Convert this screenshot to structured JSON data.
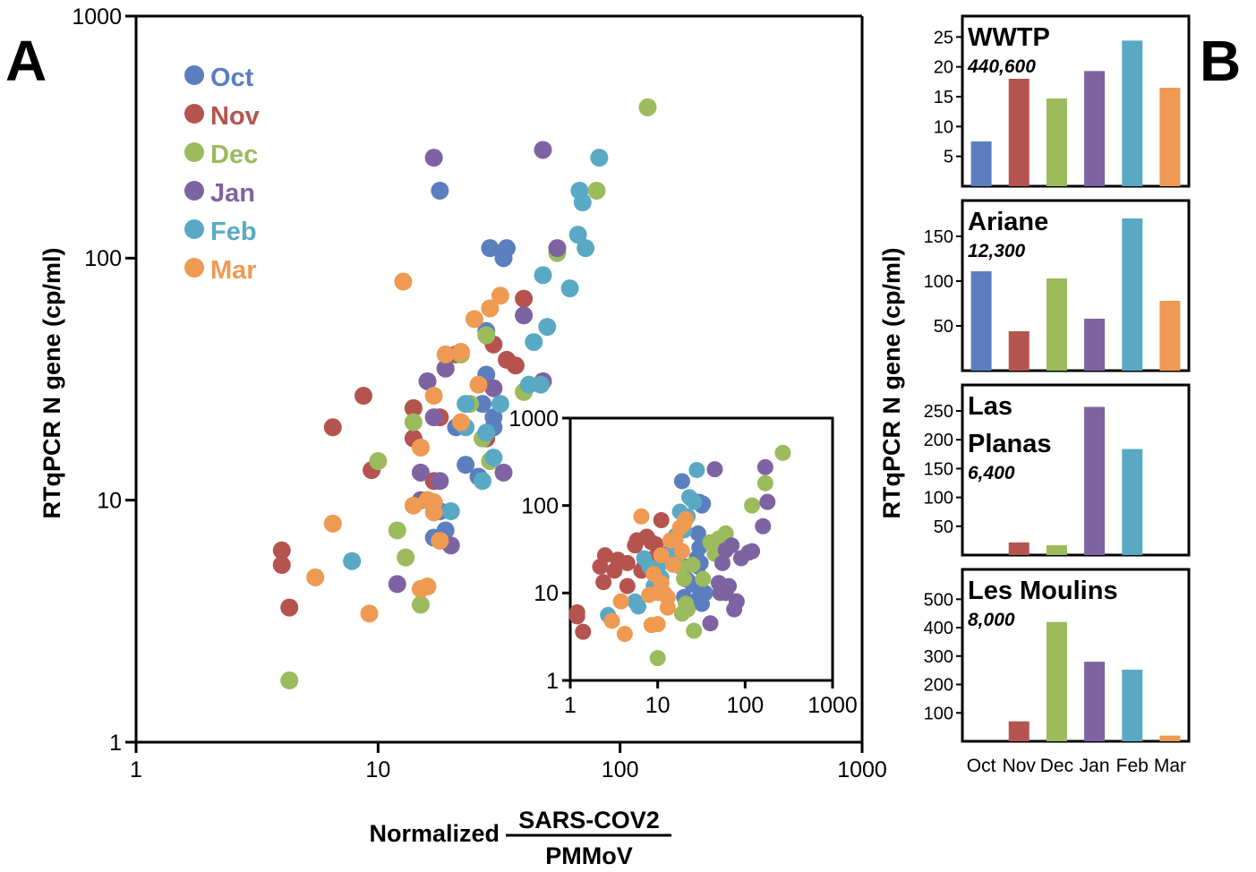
{
  "colors": {
    "Oct": "#5b7fbe",
    "Nov": "#b5544f",
    "Dec": "#9bbb5c",
    "Jan": "#7e63a2",
    "Feb": "#5aa9c4",
    "Mar": "#ef9a52"
  },
  "panels": {
    "a": "A",
    "b": "B"
  },
  "chart_data": [
    {
      "type": "scatter",
      "panel": "A",
      "title": "",
      "xlabel_prefix": "Normalized",
      "xlabel_numerator": "SARS-COV2",
      "xlabel_denominator": "PMMoV",
      "ylabel": "RTqPCR N gene (cp/ml)",
      "xscale": "log",
      "yscale": "log",
      "xlim": [
        1,
        1000
      ],
      "ylim": [
        1,
        1000
      ],
      "xticks": [
        "1",
        "10",
        "100",
        "1000"
      ],
      "yticks": [
        "1",
        "10",
        "100",
        "1000"
      ],
      "grid": false,
      "legend_position": "top-left",
      "series": [
        {
          "name": "Oct",
          "points": [
            [
              18,
              190
            ],
            [
              29,
              110
            ],
            [
              33,
              100
            ],
            [
              34,
              110
            ],
            [
              28,
              50
            ],
            [
              28,
              33
            ],
            [
              27,
              25
            ],
            [
              30,
              22
            ],
            [
              30,
              20
            ],
            [
              26,
              12.5
            ],
            [
              23,
              14
            ],
            [
              21,
              20
            ],
            [
              18,
              9
            ],
            [
              19,
              7.5
            ],
            [
              17,
              7
            ],
            [
              16,
              10
            ]
          ]
        },
        {
          "name": "Nov",
          "points": [
            [
              4,
              6.2
            ],
            [
              4,
              5.4
            ],
            [
              4.3,
              3.6
            ],
            [
              6.5,
              20
            ],
            [
              8.7,
              27
            ],
            [
              9.4,
              13.3
            ],
            [
              14,
              24
            ],
            [
              14,
              18
            ],
            [
              17,
              12
            ],
            [
              18,
              22
            ],
            [
              19,
              35
            ],
            [
              21,
              40
            ],
            [
              28,
              18
            ],
            [
              30,
              44
            ],
            [
              34,
              38
            ],
            [
              37,
              36
            ],
            [
              40,
              68
            ]
          ]
        },
        {
          "name": "Dec",
          "points": [
            [
              4.3,
              1.8
            ],
            [
              10,
              14.5
            ],
            [
              12,
              7.5
            ],
            [
              13,
              5.8
            ],
            [
              14,
              21
            ],
            [
              15,
              3.7
            ],
            [
              22,
              40
            ],
            [
              24,
              25
            ],
            [
              27,
              18
            ],
            [
              28,
              48
            ],
            [
              29,
              14.5
            ],
            [
              40,
              28
            ],
            [
              55,
              105
            ],
            [
              80,
              190
            ],
            [
              130,
              420
            ]
          ]
        },
        {
          "name": "Jan",
          "points": [
            [
              12,
              4.5
            ],
            [
              15,
              13
            ],
            [
              15,
              10
            ],
            [
              16,
              31
            ],
            [
              17,
              22
            ],
            [
              18,
              12
            ],
            [
              19,
              35
            ],
            [
              20,
              6.5
            ],
            [
              30,
              29
            ],
            [
              33,
              13
            ],
            [
              40,
              58
            ],
            [
              48,
              31
            ],
            [
              48,
              280
            ],
            [
              55,
              110
            ],
            [
              17,
              260
            ]
          ]
        },
        {
          "name": "Feb",
          "points": [
            [
              7.8,
              5.6
            ],
            [
              20,
              9
            ],
            [
              23,
              25
            ],
            [
              23,
              20
            ],
            [
              27,
              12
            ],
            [
              28,
              19
            ],
            [
              30,
              15
            ],
            [
              32,
              25
            ],
            [
              42,
              30
            ],
            [
              44,
              45
            ],
            [
              47,
              30
            ],
            [
              48,
              85
            ],
            [
              50,
              52
            ],
            [
              62,
              75
            ],
            [
              67,
              125
            ],
            [
              68,
              190
            ],
            [
              70,
              170
            ],
            [
              72,
              110
            ],
            [
              82,
              260
            ]
          ]
        },
        {
          "name": "Mar",
          "points": [
            [
              5.5,
              4.8
            ],
            [
              6.5,
              8
            ],
            [
              9.2,
              3.4
            ],
            [
              12.7,
              80
            ],
            [
              14,
              9.5
            ],
            [
              15,
              4.3
            ],
            [
              15,
              16.5
            ],
            [
              16,
              4.4
            ],
            [
              16,
              10
            ],
            [
              17,
              27
            ],
            [
              17,
              9.8
            ],
            [
              17,
              8.9
            ],
            [
              18,
              6.8
            ],
            [
              19,
              40
            ],
            [
              22,
              21
            ],
            [
              22,
              41
            ],
            [
              25,
              56
            ],
            [
              26,
              30
            ],
            [
              29,
              62
            ],
            [
              32,
              70
            ]
          ]
        }
      ]
    },
    {
      "type": "scatter",
      "panel": "A-inset",
      "xscale": "log",
      "yscale": "log",
      "xlim": [
        1,
        1000
      ],
      "ylim": [
        1,
        1000
      ],
      "xticks": [
        "1",
        "10",
        "100",
        "1000"
      ],
      "yticks": [
        "1",
        "10",
        "100",
        "1000"
      ],
      "series": [
        {
          "name": "Oct",
          "points": [
            [
              19,
              190
            ],
            [
              30,
              110
            ],
            [
              32,
              100
            ],
            [
              33,
              105
            ],
            [
              29,
              48
            ],
            [
              30,
              33
            ],
            [
              28,
              25
            ],
            [
              31,
              22
            ],
            [
              29,
              20
            ],
            [
              25,
              12.5
            ],
            [
              22,
              14
            ],
            [
              21,
              20
            ],
            [
              30,
              9
            ],
            [
              32,
              7.5
            ],
            [
              28,
              8
            ],
            [
              35,
              10
            ],
            [
              20,
              9
            ]
          ]
        },
        {
          "name": "Nov",
          "points": [
            [
              1.2,
              6
            ],
            [
              1.2,
              5.4
            ],
            [
              1.4,
              3.6
            ],
            [
              2.2,
              20
            ],
            [
              2.5,
              27
            ],
            [
              2.4,
              13.3
            ],
            [
              3.5,
              24
            ],
            [
              3.2,
              18
            ],
            [
              4.5,
              12
            ],
            [
              4.5,
              22
            ],
            [
              5.5,
              35
            ],
            [
              5.8,
              40
            ],
            [
              6.5,
              18
            ],
            [
              7.5,
              44
            ],
            [
              8.5,
              38
            ],
            [
              9.5,
              36
            ],
            [
              11,
              68
            ],
            [
              9,
              25
            ],
            [
              7,
              20
            ],
            [
              13,
              28
            ],
            [
              15,
              38
            ]
          ]
        },
        {
          "name": "Dec",
          "points": [
            [
              10,
              1.8
            ],
            [
              20,
              14.5
            ],
            [
              21,
              7.5
            ],
            [
              19,
              5.8
            ],
            [
              25,
              21
            ],
            [
              26,
              3.7
            ],
            [
              40,
              38
            ],
            [
              50,
              42
            ],
            [
              55,
              28
            ],
            [
              60,
              48
            ],
            [
              33,
              14.5
            ],
            [
              45,
              28
            ],
            [
              120,
              100
            ],
            [
              170,
              180
            ],
            [
              270,
              400
            ],
            [
              22,
              6.5
            ],
            [
              18,
              20
            ]
          ]
        },
        {
          "name": "Jan",
          "points": [
            [
              40,
              4.5
            ],
            [
              50,
              13
            ],
            [
              52,
              10
            ],
            [
              60,
              31
            ],
            [
              55,
              22
            ],
            [
              65,
              12
            ],
            [
              70,
              35
            ],
            [
              75,
              6.5
            ],
            [
              110,
              29
            ],
            [
              120,
              30
            ],
            [
              160,
              58
            ],
            [
              180,
              110
            ],
            [
              170,
              275
            ],
            [
              45,
              260
            ],
            [
              60,
              10
            ],
            [
              80,
              8
            ],
            [
              90,
              25
            ]
          ]
        },
        {
          "name": "Feb",
          "points": [
            [
              2.7,
              5.6
            ],
            [
              6,
              7
            ],
            [
              7,
              25
            ],
            [
              8,
              20
            ],
            [
              9,
              12
            ],
            [
              10,
              19
            ],
            [
              11,
              15
            ],
            [
              12,
              25
            ],
            [
              15,
              30
            ],
            [
              16,
              45
            ],
            [
              17,
              30
            ],
            [
              18,
              85
            ],
            [
              20,
              52
            ],
            [
              22,
              75
            ],
            [
              23,
              125
            ],
            [
              24,
              120
            ],
            [
              26,
              110
            ],
            [
              28,
              255
            ],
            [
              5.5,
              8
            ]
          ]
        },
        {
          "name": "Mar",
          "points": [
            [
              3,
              4.8
            ],
            [
              3.8,
              8
            ],
            [
              4.2,
              3.4
            ],
            [
              6.5,
              75
            ],
            [
              8,
              9.5
            ],
            [
              8.5,
              4.3
            ],
            [
              9,
              16.5
            ],
            [
              10,
              4.4
            ],
            [
              10,
              10
            ],
            [
              11,
              27
            ],
            [
              12,
              9.8
            ],
            [
              13,
              8.9
            ],
            [
              13,
              6.8
            ],
            [
              14,
              40
            ],
            [
              15,
              21
            ],
            [
              16,
              41
            ],
            [
              18,
              56
            ],
            [
              19,
              30
            ],
            [
              20,
              62
            ],
            [
              21,
              70
            ],
            [
              11,
              13
            ]
          ]
        }
      ]
    },
    {
      "type": "bar",
      "panel": "B",
      "ylabel": "RTqPCR N gene (cp/ml)",
      "categories": [
        "Oct",
        "Nov",
        "Dec",
        "Jan",
        "Feb",
        "Mar"
      ],
      "subplots": [
        {
          "site": [
            "WWTP"
          ],
          "count": "440,600",
          "ylim": [
            0,
            28.5
          ],
          "yticks": [
            5,
            10,
            15,
            20,
            25
          ],
          "values": [
            7.5,
            18,
            14.7,
            19.3,
            24.4,
            16.5
          ]
        },
        {
          "site": [
            "Ariane"
          ],
          "count": "12,300",
          "ylim": [
            0,
            190
          ],
          "yticks": [
            50,
            100,
            150
          ],
          "values": [
            111,
            44,
            103,
            58,
            170,
            78
          ]
        },
        {
          "site": [
            "Las",
            "Planas"
          ],
          "count": "6,400",
          "ylim": [
            0,
            295
          ],
          "yticks": [
            50,
            100,
            150,
            200,
            250
          ],
          "values": [
            0,
            22,
            17,
            257,
            184,
            0
          ]
        },
        {
          "site": [
            "Les Moulins"
          ],
          "count": "8,000",
          "ylim": [
            0,
            605
          ],
          "yticks": [
            100,
            200,
            300,
            400,
            500
          ],
          "values": [
            0,
            70,
            420,
            280,
            252,
            20
          ]
        }
      ]
    }
  ]
}
